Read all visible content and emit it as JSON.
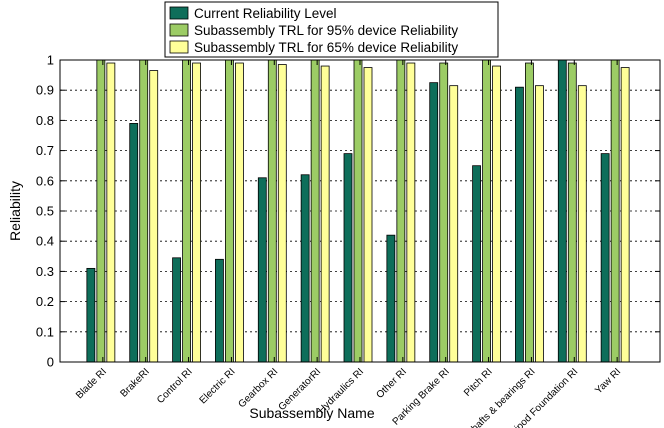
{
  "chart_data": {
    "type": "bar",
    "title": "",
    "xlabel": "Subassembly Name",
    "ylabel": "Reliability",
    "ylim": [
      0,
      1
    ],
    "yticks": [
      0,
      0.1,
      0.2,
      0.3,
      0.4,
      0.5,
      0.6,
      0.7,
      0.8,
      0.9,
      1
    ],
    "grid": true,
    "legend_position": "top-center",
    "categories": [
      "Blade RI",
      "BrakeRI",
      "Control RI",
      "Electric RI",
      "Gearbox RI",
      "GeneratorRI",
      "Hydraulics RI",
      "Other RI",
      "Parking Brake RI",
      "Pitch RI",
      "Shafts & bearings RI",
      "Tripod Foundation RI",
      "Yaw RI"
    ],
    "series": [
      {
        "name": "Current Reliability Level",
        "color": "#0e6e5a",
        "values": [
          0.31,
          0.79,
          0.345,
          0.34,
          0.61,
          0.62,
          0.69,
          0.42,
          0.925,
          0.65,
          0.91,
          1.0,
          0.69
        ]
      },
      {
        "name": "Subassembly TRL for 95% device Reliability",
        "color": "#9ccc65",
        "values": [
          1.0,
          1.0,
          1.0,
          1.0,
          1.0,
          1.0,
          1.0,
          1.0,
          0.99,
          1.0,
          0.99,
          0.99,
          1.0
        ]
      },
      {
        "name": "Subassembly TRL for 65% device Reliability",
        "color": "#ffff99",
        "values": [
          0.99,
          0.965,
          0.99,
          0.99,
          0.985,
          0.98,
          0.975,
          0.99,
          0.915,
          0.98,
          0.915,
          0.915,
          0.975
        ]
      }
    ]
  }
}
